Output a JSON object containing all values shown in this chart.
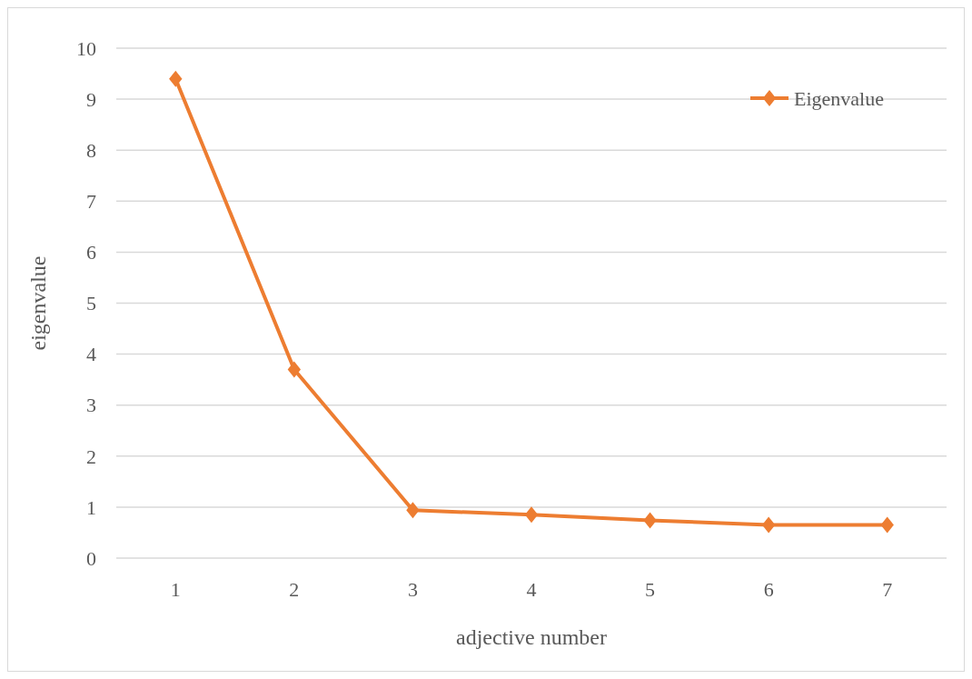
{
  "chart_data": {
    "type": "line",
    "xlabel": "adjective number",
    "ylabel": "eigenvalue",
    "categories": [
      "1",
      "2",
      "3",
      "4",
      "5",
      "6",
      "7"
    ],
    "series": [
      {
        "name": "Eigenvalue",
        "color": "#ed7d31",
        "values": [
          9.4,
          3.7,
          0.94,
          0.85,
          0.74,
          0.65,
          0.65
        ]
      }
    ],
    "ylim": [
      0,
      10
    ],
    "yticks": [
      0,
      1,
      2,
      3,
      4,
      5,
      6,
      7,
      8,
      9,
      10
    ],
    "grid": "y",
    "legend": "top right",
    "marker": "diamond",
    "line_style": "solid"
  }
}
